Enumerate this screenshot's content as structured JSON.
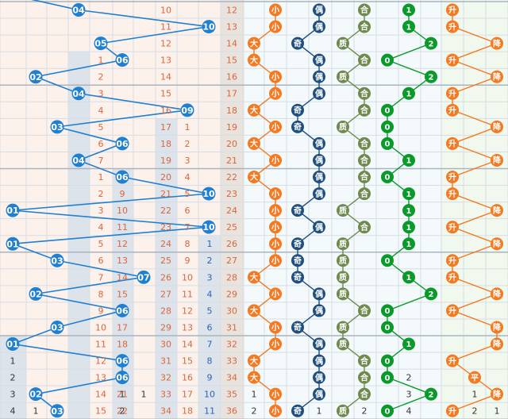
{
  "chart_data": {
    "type": "table",
    "view": "lottery-trend-chart",
    "rows": [
      {
        "r": "04",
        "m": [
          10,
          12
        ],
        "s": "小",
        "o": "偶",
        "p": "合",
        "z": "1",
        "t": "升"
      },
      {
        "m": [
          11,
          13
        ],
        "b": "10",
        "s": "小",
        "o": "偶",
        "p": "合",
        "z": "1",
        "t": "升"
      },
      {
        "r": "05",
        "m": [
          12,
          14
        ],
        "s": "大",
        "o": "奇",
        "p": "质",
        "z": "2",
        "t": "降"
      },
      {
        "r": "06",
        "m": [
          13,
          15
        ],
        "c": "1",
        "s": "大",
        "o": "偶",
        "p": "合",
        "z": "0",
        "t": "升"
      },
      {
        "r": "02",
        "m": [
          14,
          16
        ],
        "c": "2",
        "s": "小",
        "o": "偶",
        "p": "质",
        "z": "2",
        "t": "降"
      },
      {
        "r": "04",
        "m": [
          15,
          17
        ],
        "c": "3",
        "s": "小",
        "o": "偶",
        "p": "合",
        "z": "1",
        "t": "升"
      },
      {
        "m": [
          16,
          18
        ],
        "c": "4",
        "b": "09",
        "s": "大",
        "o": "奇",
        "p": "合",
        "z": "0",
        "t": "升"
      },
      {
        "r": "03",
        "m": [
          17,
          19
        ],
        "c": "5",
        "d": "1",
        "s": "小",
        "o": "奇",
        "p": "质",
        "z": "0",
        "t": "降"
      },
      {
        "r": "06",
        "m": [
          18,
          20
        ],
        "c": "6",
        "d": "2",
        "s": "大",
        "o": "偶",
        "p": "合",
        "z": "0",
        "t": "升"
      },
      {
        "r": "04",
        "m": [
          19,
          21
        ],
        "c": "7",
        "d": "3",
        "s": "小",
        "o": "偶",
        "p": "合",
        "z": "1",
        "t": "降"
      },
      {
        "r": "06",
        "m": [
          20,
          22
        ],
        "c": "1",
        "e": "8",
        "d": "4",
        "s": "大",
        "o": "偶",
        "p": "合",
        "z": "0",
        "t": "升"
      },
      {
        "m": [
          21,
          23
        ],
        "c": "2",
        "e": "9",
        "d": "5",
        "b": "10",
        "s": "小",
        "o": "偶",
        "p": "合",
        "z": "1",
        "t": "升"
      },
      {
        "r": "01",
        "m": [
          22,
          24
        ],
        "c": "3",
        "e": "10",
        "d": "6",
        "s": "小",
        "o": "奇",
        "p": "质",
        "z": "1",
        "t": "降"
      },
      {
        "m": [
          23,
          25
        ],
        "c": "4",
        "e": "11",
        "d": "7",
        "b": "10",
        "s": "小",
        "o": "偶",
        "p": "合",
        "z": "1",
        "t": "升"
      },
      {
        "r": "01",
        "m": [
          24,
          26
        ],
        "c": "5",
        "e": "12",
        "d": "8",
        "f": "1",
        "s": "小",
        "o": "奇",
        "p": "质",
        "z": "1",
        "t": "降"
      },
      {
        "r": "03",
        "m": [
          25,
          27
        ],
        "c": "6",
        "e": "13",
        "d": "9",
        "f": "2",
        "s": "小",
        "o": "奇",
        "p": "质",
        "z": "0",
        "t": "升"
      },
      {
        "r": "07",
        "m": [
          26,
          28
        ],
        "c": "7",
        "e": "14",
        "d": "10",
        "f": "3",
        "s": "大",
        "o": "奇",
        "p": "质",
        "z": "1",
        "t": "升"
      },
      {
        "r": "02",
        "m": [
          27,
          29
        ],
        "c": "8",
        "e": "15",
        "d": "11",
        "f": "4",
        "s": "小",
        "o": "偶",
        "p": "质",
        "z": "2",
        "t": "降"
      },
      {
        "r": "06",
        "m": [
          28,
          30
        ],
        "c": "9",
        "e": "16",
        "d": "12",
        "f": "5",
        "s": "大",
        "o": "偶",
        "p": "合",
        "z": "0",
        "t": "升"
      },
      {
        "r": "03",
        "m": [
          29,
          31
        ],
        "c": "10",
        "e": "17",
        "d": "13",
        "f": "6",
        "s": "小",
        "o": "奇",
        "p": "质",
        "z": "0",
        "t": "降"
      },
      {
        "r": "01",
        "m": [
          30,
          32
        ],
        "c": "11",
        "e": "18",
        "d": "14",
        "f": "7",
        "s": "小",
        "o": "偶",
        "p": "质",
        "z": "1",
        "t": "降"
      },
      {
        "r": "06",
        "m": [
          31,
          33
        ],
        "c": "12",
        "e": "19",
        "d": "15",
        "f": "8",
        "s": "大",
        "o": "偶",
        "p": "合",
        "z": "0",
        "t": "升"
      },
      {
        "r": "06",
        "m": [
          32,
          34
        ],
        "c": "13",
        "e": "20",
        "d": "16",
        "f": "9",
        "s": "大",
        "o": "偶",
        "p": "合",
        "z": "0",
        "t": "平"
      },
      {
        "r": "02",
        "m": [
          33,
          35
        ],
        "c": "14",
        "e": "21",
        "d": "17",
        "f": "10",
        "s": "小",
        "o": "偶",
        "p": "合",
        "z": "2",
        "t": "降"
      },
      {
        "r": "03",
        "m": [
          34,
          36
        ],
        "c": "15",
        "e": "22",
        "d": "18",
        "f": "11",
        "s": "小",
        "o": "奇",
        "p": "质",
        "z": "0",
        "t": "升"
      }
    ],
    "extras": [
      {},
      {},
      {},
      {},
      {},
      {},
      {},
      {},
      {},
      {},
      {},
      {},
      {},
      {},
      {},
      {},
      {},
      {},
      {},
      {},
      {
        "a": ""
      },
      {
        "a": "1",
        "sm": "",
        "od": "",
        "pr": "",
        "zr": "",
        "tr": ""
      },
      {
        "a": "2",
        "sm": "",
        "od": "",
        "pr": "",
        "zr": "2",
        "tr": ""
      },
      {
        "a": "3",
        "x1": "1",
        "x2": "1",
        "sm": "1",
        "od": "",
        "pr": "1",
        "zr": "3",
        "tr": "1"
      },
      {
        "a": "4",
        "a2": "1",
        "x1": "2",
        "x2": "",
        "sm": "2",
        "od": "1",
        "pr": "2",
        "zr": "4",
        "tr": "2",
        "tr2": "1"
      }
    ],
    "colors": {
      "blue": "#1f7fd1",
      "orange": "#f47920",
      "navy": "#1f4f7f",
      "olive": "#6f8a4e",
      "green": "#0a9a2a",
      "miss": "#d9663c",
      "zone2": "#2d63b8",
      "grid": "#d7dde4"
    }
  }
}
